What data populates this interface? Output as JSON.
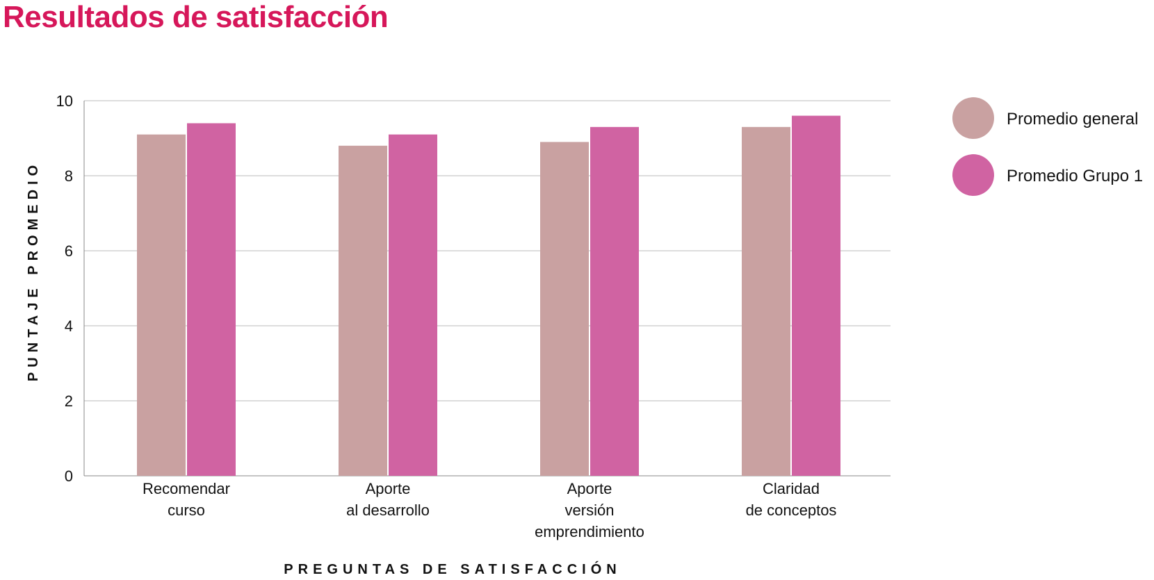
{
  "title": "Resultados de satisfacción",
  "chart_data": {
    "type": "bar",
    "title": "Resultados de satisfacción",
    "xlabel": "PREGUNTAS DE SATISFACCIÓN",
    "ylabel": "PUNTAJE PROMEDIO",
    "ylim": [
      0,
      10
    ],
    "yticks": [
      0,
      2,
      4,
      6,
      8,
      10
    ],
    "grid": true,
    "legend_position": "top-right",
    "categories": [
      [
        "Recomendar",
        "curso"
      ],
      [
        "Aporte",
        "al desarrollo"
      ],
      [
        "Aporte",
        "versión",
        "emprendimiento"
      ],
      [
        "Claridad",
        "de conceptos"
      ]
    ],
    "series": [
      {
        "name": "Promedio general",
        "color": "#c9a1a1",
        "values": [
          9.1,
          8.8,
          8.9,
          9.3
        ]
      },
      {
        "name": "Promedio Grupo 1",
        "color": "#d063a2",
        "values": [
          9.4,
          9.1,
          9.3,
          9.6
        ]
      }
    ]
  }
}
